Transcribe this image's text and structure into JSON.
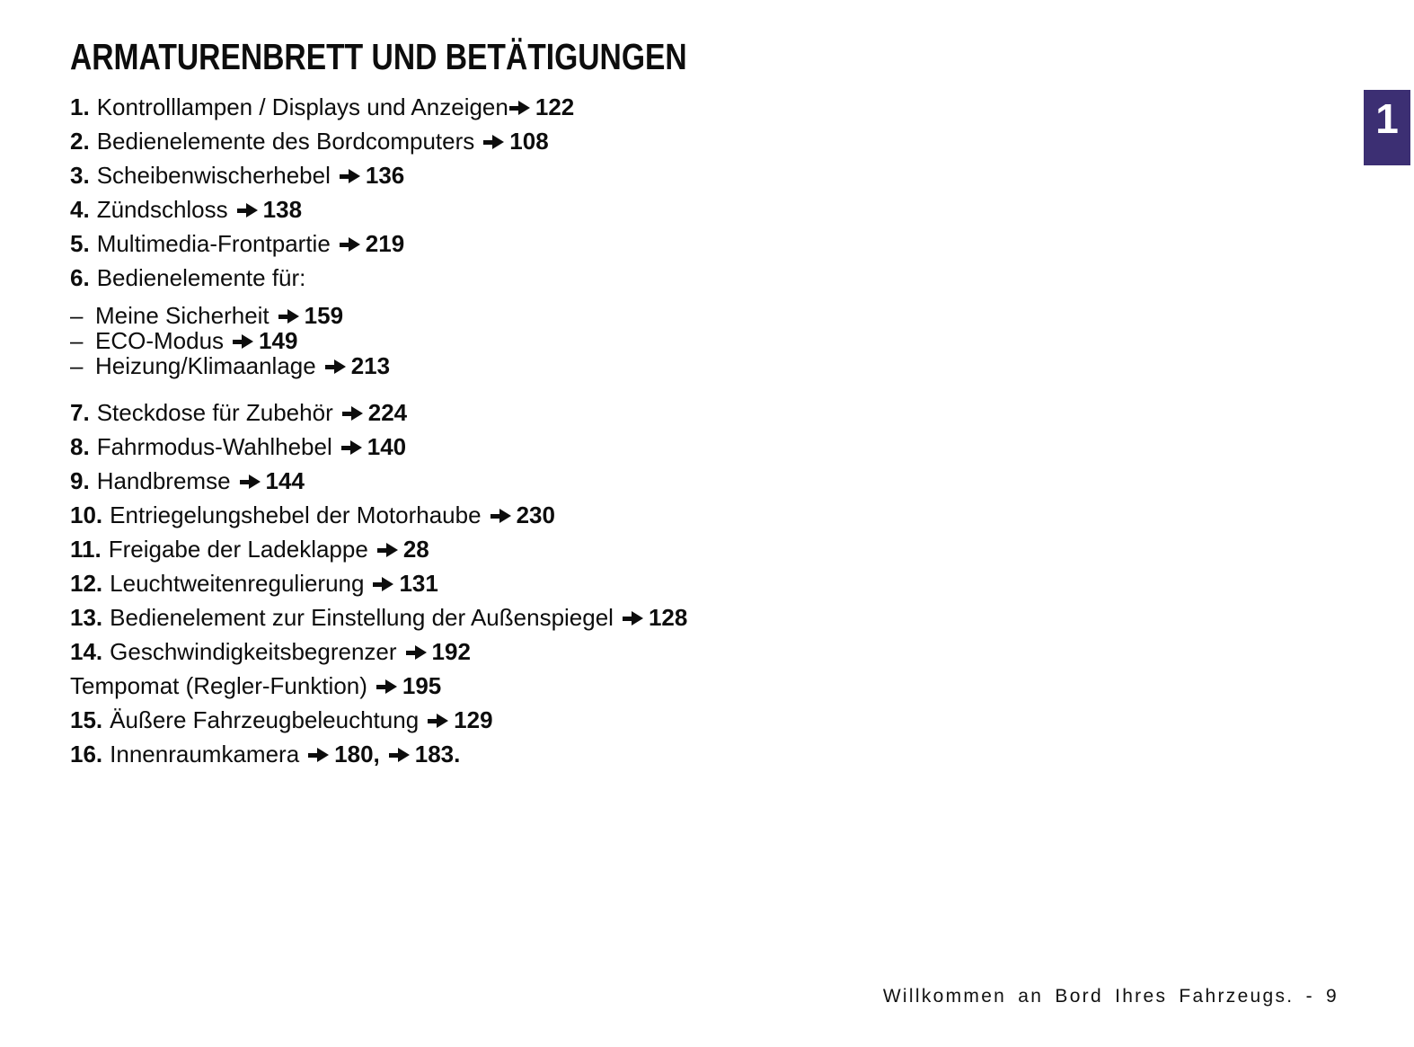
{
  "page": {
    "title": "ARMATURENBRETT UND BETÄTIGUNGEN",
    "chapter_tab": "1",
    "footer": "Willkommen an Bord Ihres Fahrzeugs. - 9",
    "colors": {
      "tab_bg": "#3c2f73",
      "tab_text": "#ffffff",
      "text": "#0d0d0d"
    },
    "icons": {
      "page_ref_arrow": "heavy-right-arrow ➔"
    }
  },
  "toc": {
    "items": [
      {
        "kind": "numbered",
        "num": "1.",
        "label": "Kontrolllampen / Displays und Anzeigen",
        "refs": [
          "122"
        ],
        "tight": true
      },
      {
        "kind": "numbered",
        "num": "2.",
        "label": "Bedienelemente des Bordcomputers",
        "refs": [
          "108"
        ]
      },
      {
        "kind": "numbered",
        "num": "3.",
        "label": "Scheibenwischerhebel",
        "refs": [
          "136"
        ]
      },
      {
        "kind": "numbered",
        "num": "4.",
        "label": "Zündschloss",
        "refs": [
          "138"
        ]
      },
      {
        "kind": "numbered",
        "num": "5.",
        "label": "Multimedia-Frontpartie",
        "refs": [
          "219"
        ]
      },
      {
        "kind": "numbered",
        "num": "6.",
        "label": "Bedienelemente für:",
        "refs": []
      },
      {
        "kind": "dash",
        "label": "Meine Sicherheit",
        "refs": [
          "159"
        ]
      },
      {
        "kind": "dash",
        "label": "ECO-Modus",
        "refs": [
          "149"
        ]
      },
      {
        "kind": "dash",
        "label": "Heizung/Klimaanlage",
        "refs": [
          "213"
        ]
      },
      {
        "kind": "numbered",
        "num": "7.",
        "label": "Steckdose für Zubehör",
        "refs": [
          "224"
        ]
      },
      {
        "kind": "numbered",
        "num": "8.",
        "label": "Fahrmodus-Wahlhebel",
        "refs": [
          "140"
        ]
      },
      {
        "kind": "numbered",
        "num": "9.",
        "label": "Handbremse",
        "refs": [
          "144"
        ]
      },
      {
        "kind": "numbered",
        "num": "10.",
        "label": "Entriegelungshebel der Motorhaube",
        "refs": [
          "230"
        ]
      },
      {
        "kind": "numbered",
        "num": "11.",
        "label": "Freigabe der Ladeklappe",
        "refs": [
          "28"
        ]
      },
      {
        "kind": "numbered",
        "num": "12.",
        "label": "Leuchtweitenregulierung",
        "refs": [
          "131"
        ]
      },
      {
        "kind": "numbered",
        "num": "13.",
        "label": "Bedienelement zur Einstellung der Außenspiegel",
        "refs": [
          "128"
        ]
      },
      {
        "kind": "numbered",
        "num": "14.",
        "label": "Geschwindigkeitsbegrenzer",
        "refs": [
          "192"
        ]
      },
      {
        "kind": "plain",
        "label": "Tempomat (Regler-Funktion)",
        "refs": [
          "195"
        ]
      },
      {
        "kind": "numbered",
        "num": "15.",
        "label": "Äußere Fahrzeugbeleuchtung",
        "refs": [
          "129"
        ]
      },
      {
        "kind": "numbered",
        "num": "16.",
        "label": "Innenraumkamera",
        "refs": [
          "180,",
          "183."
        ]
      }
    ]
  }
}
